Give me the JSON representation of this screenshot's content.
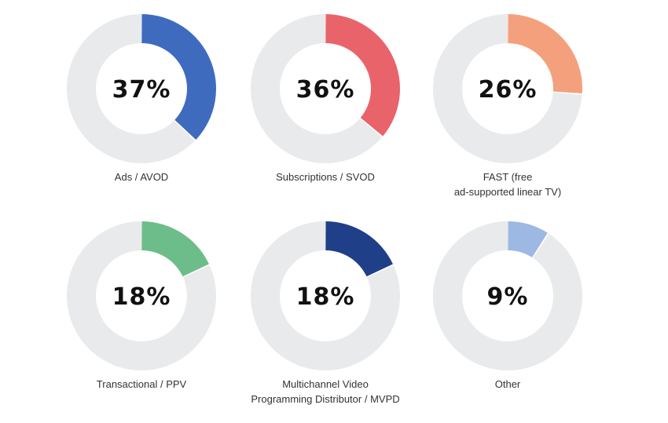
{
  "chart_data": {
    "type": "pie",
    "subtype": "donut-grid",
    "track_color": "#e9eaeb",
    "items": [
      {
        "label_lines": [
          "Ads / AVOD"
        ],
        "value": 37,
        "value_label": "37%",
        "color": "#3f6bbf"
      },
      {
        "label_lines": [
          "Subscriptions / SVOD"
        ],
        "value": 36,
        "value_label": "36%",
        "color": "#e8646a"
      },
      {
        "label_lines": [
          "FAST (free",
          "ad-supported linear TV)"
        ],
        "value": 26,
        "value_label": "26%",
        "color": "#f5a07d"
      },
      {
        "label_lines": [
          "Transactional / PPV"
        ],
        "value": 18,
        "value_label": "18%",
        "color": "#6dbd8a"
      },
      {
        "label_lines": [
          "Multichannel Video",
          "Programming Distributor / MVPD"
        ],
        "value": 18,
        "value_label": "18%",
        "color": "#1f3f88"
      },
      {
        "label_lines": [
          "Other"
        ],
        "value": 9,
        "value_label": "9%",
        "color": "#9db8e3"
      }
    ]
  }
}
